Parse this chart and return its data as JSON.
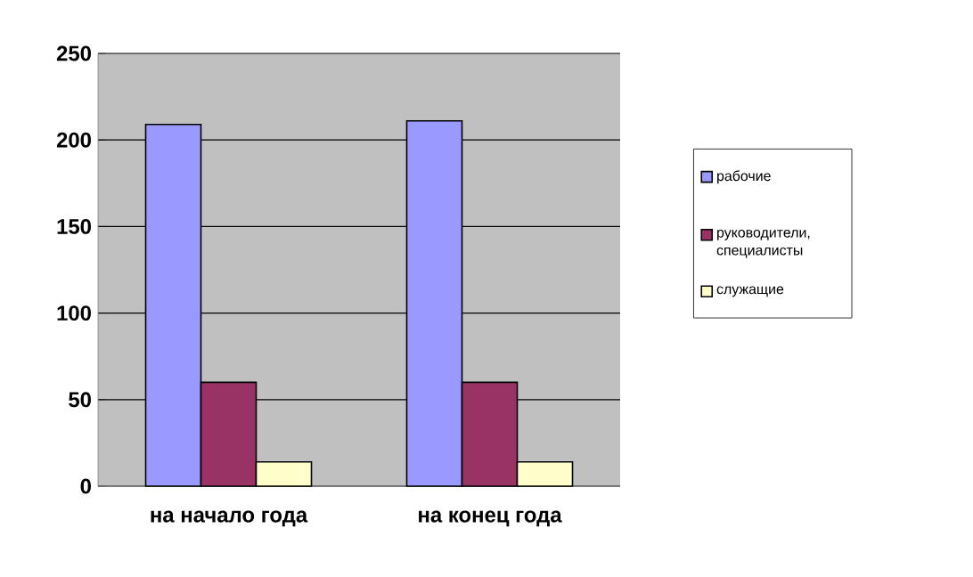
{
  "chart_data": {
    "type": "bar",
    "categories": [
      "на начало года",
      "на конец  года"
    ],
    "series": [
      {
        "name": "рабочие",
        "color": "#9999ff",
        "values": [
          209,
          211
        ]
      },
      {
        "name": "руководители, специалисты",
        "color": "#993366",
        "values": [
          60,
          60
        ]
      },
      {
        "name": "служащие",
        "color": "#ffffcc",
        "values": [
          14,
          14
        ]
      }
    ],
    "ylim": [
      0,
      250
    ],
    "yticks": [
      0,
      50,
      100,
      150,
      200,
      250
    ],
    "grid": "y",
    "legend": "right"
  }
}
